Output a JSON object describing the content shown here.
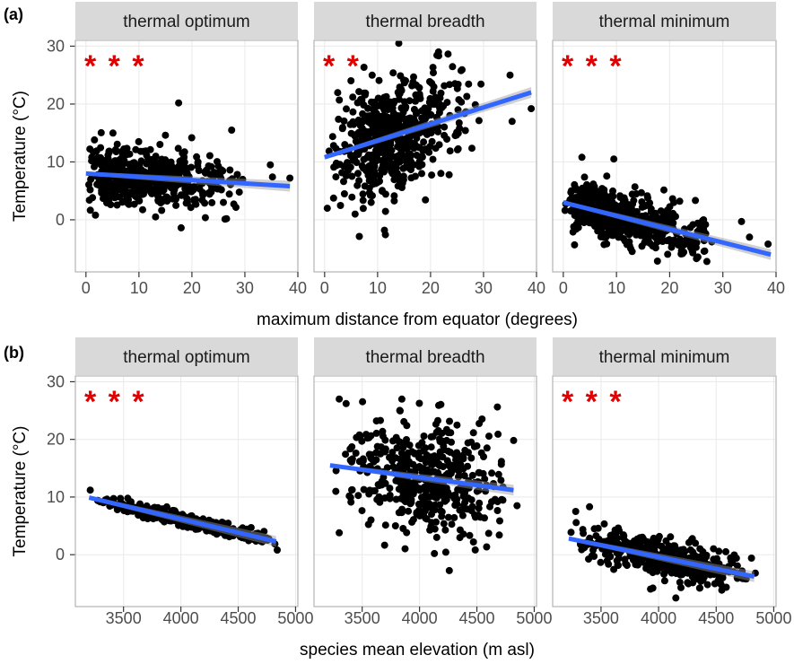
{
  "chart_data": [
    {
      "type": "scatter",
      "panel_label": "(a)",
      "xlabel": "maximum distance from equator (degrees)",
      "ylabel": "Temperature (°C)",
      "xlim": [
        -2,
        40
      ],
      "ylim": [
        -9,
        31
      ],
      "xticks": [
        0,
        10,
        20,
        30,
        40
      ],
      "yticks": [
        0,
        10,
        20,
        30
      ],
      "grid": true,
      "facets": [
        {
          "title": "thermal optimum",
          "significance": "***",
          "fit": {
            "x": [
              0,
              38.5
            ],
            "y": [
              8.0,
              5.8
            ]
          },
          "cloud": {
            "n": 520,
            "x_range": [
              0,
              30
            ],
            "x_mode": 5,
            "base": 8.0,
            "slope": -0.06,
            "spread": 2.6
          },
          "outliers": [
            [
              1.8,
              0.8
            ],
            [
              17.5,
              20.2
            ],
            [
              34.8,
              9.5
            ],
            [
              35.2,
              7.4
            ],
            [
              38.5,
              7.2
            ],
            [
              27.5,
              15.5
            ]
          ]
        },
        {
          "title": "thermal breadth",
          "significance": "**",
          "fit": {
            "x": [
              0,
              39
            ],
            "y": [
              10.8,
              22.0
            ]
          },
          "cloud": {
            "n": 560,
            "x_range": [
              0,
              30
            ],
            "x_mode": 10,
            "base": 10.8,
            "slope": 0.29,
            "spread": 5.2
          },
          "outliers": [
            [
              14,
              30.5
            ],
            [
              35,
              25.0
            ],
            [
              39,
              19.2
            ],
            [
              35.4,
              17.0
            ],
            [
              0.5,
              2.0
            ],
            [
              21.5,
              29.0
            ]
          ]
        },
        {
          "title": "thermal minimum",
          "significance": "***",
          "fit": {
            "x": [
              0,
              39
            ],
            "y": [
              3.0,
              -6.0
            ]
          },
          "cloud": {
            "n": 560,
            "x_range": [
              0,
              30
            ],
            "x_mode": 5,
            "base": 3.0,
            "slope": -0.23,
            "spread": 2.2
          },
          "outliers": [
            [
              9.5,
              10.5
            ],
            [
              35,
              -3.0
            ],
            [
              38.5,
              -4.2
            ],
            [
              33.5,
              -0.3
            ],
            [
              27,
              -7.2
            ],
            [
              3.5,
              10.8
            ]
          ]
        }
      ]
    },
    {
      "type": "scatter",
      "panel_label": "(b)",
      "xlabel": "species mean elevation (m asl)",
      "ylabel": "Temperature (°C)",
      "xlim": [
        3080,
        5020
      ],
      "ylim": [
        -9,
        31
      ],
      "xticks": [
        3500,
        4000,
        4500,
        5000
      ],
      "yticks": [
        0,
        10,
        20,
        30
      ],
      "grid": true,
      "facets": [
        {
          "title": "thermal optimum",
          "significance": "***",
          "fit": {
            "x": [
              3200,
              4830
            ],
            "y": [
              9.9,
              2.3
            ]
          },
          "cloud": {
            "n": 420,
            "x_range": [
              3200,
              4850
            ],
            "x_mode": 4050,
            "base": 9.9,
            "slope": -0.00466,
            "spread": 0.55
          },
          "outliers": [
            [
              4840,
              0.8
            ],
            [
              3210,
              11.2
            ]
          ]
        },
        {
          "title": "thermal breadth",
          "significance": "",
          "fit": {
            "x": [
              3220,
              4820
            ],
            "y": [
              15.5,
              11.2
            ]
          },
          "cloud": {
            "n": 460,
            "x_range": [
              3220,
              4850
            ],
            "x_mode": 4050,
            "base": 15.5,
            "slope": -0.0027,
            "spread": 4.8
          },
          "outliers": [
            [
              3300,
              27.0
            ],
            [
              3360,
              26.2
            ],
            [
              4470,
              2.2
            ],
            [
              4150,
              3.0
            ],
            [
              3300,
              3.8
            ],
            [
              4850,
              8.5
            ]
          ]
        },
        {
          "title": "thermal minimum",
          "significance": "***",
          "fit": {
            "x": [
              3220,
              4830
            ],
            "y": [
              2.8,
              -3.8
            ]
          },
          "cloud": {
            "n": 440,
            "x_range": [
              3220,
              4850
            ],
            "x_mode": 4050,
            "base": 2.8,
            "slope": -0.0041,
            "spread": 1.6
          },
          "outliers": [
            [
              4150,
              -7.5
            ],
            [
              3950,
              -5.8
            ],
            [
              3400,
              8.3
            ],
            [
              3280,
              7.5
            ],
            [
              4840,
              -3.2
            ]
          ]
        }
      ]
    }
  ],
  "colors": {
    "strip_fill": "#d9d9d9",
    "panel_border": "#b3b3b3",
    "grid": "#ebebeb",
    "point": "#000000",
    "fit_line": "#3366ff",
    "ribbon": "#999999",
    "stars": "#e00000"
  }
}
